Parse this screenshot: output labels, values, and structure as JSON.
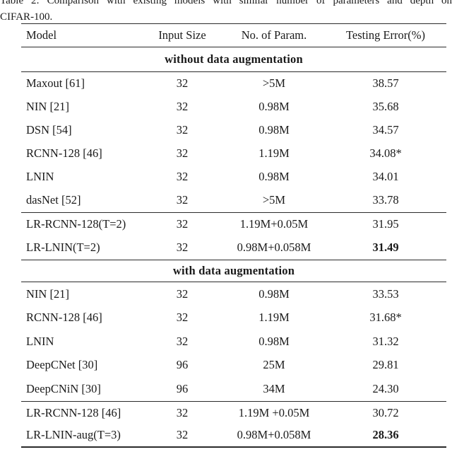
{
  "colors": {
    "background": "#ffffff",
    "text": "#1a1a1a",
    "rule": "#2b2b2b"
  },
  "caption": {
    "line1": "Table 2: Comparison with existing models with similar number of parameters and depth on",
    "line2": "CIFAR-100."
  },
  "table": {
    "headers": {
      "model": "Model",
      "input_size": "Input Size",
      "params": "No. of Param.",
      "error": "Testing Error(%)"
    },
    "sections": [
      {
        "title": "without data augmentation",
        "rows": [
          {
            "model": "Maxout [61]",
            "input_size": "32",
            "params": ">5M",
            "error": "38.57"
          },
          {
            "model": "NIN [21]",
            "input_size": "32",
            "params": "0.98M",
            "error": "35.68"
          },
          {
            "model": "DSN [54]",
            "input_size": "32",
            "params": "0.98M",
            "error": "34.57"
          },
          {
            "model": "RCNN-128 [46]",
            "input_size": "32",
            "params": "1.19M",
            "error": "34.08*"
          },
          {
            "model": "LNIN",
            "input_size": "32",
            "params": "0.98M",
            "error": "34.01"
          },
          {
            "model": "dasNet [52]",
            "input_size": "32",
            "params": ">5M",
            "error": "33.78"
          }
        ],
        "lr_rows": [
          {
            "model": "LR-RCNN-128(T=2)",
            "input_size": "32",
            "params": "1.19M+0.05M",
            "error": "31.95",
            "error_bold": false
          },
          {
            "model": "LR-LNIN(T=2)",
            "input_size": "32",
            "params": "0.98M+0.058M",
            "error": "31.49",
            "error_bold": true
          }
        ]
      },
      {
        "title": "with data augmentation",
        "rows": [
          {
            "model": "NIN [21]",
            "input_size": "32",
            "params": "0.98M",
            "error": "33.53"
          },
          {
            "model": "RCNN-128 [46]",
            "input_size": "32",
            "params": "1.19M",
            "error": "31.68*"
          },
          {
            "model": "LNIN",
            "input_size": "32",
            "params": "0.98M",
            "error": "31.32"
          },
          {
            "model": "DeepCNet [30]",
            "input_size": "96",
            "params": "25M",
            "error": "29.81"
          },
          {
            "model": "DeepCNiN [30]",
            "input_size": "96",
            "params": "34M",
            "error": "24.30"
          }
        ],
        "lr_rows": [
          {
            "model": "LR-RCNN-128 [46]",
            "input_size": "32",
            "params": "1.19M +0.05M",
            "error": "30.72",
            "error_bold": false
          },
          {
            "model": "LR-LNIN-aug(T=3)",
            "input_size": "32",
            "params": "0.98M+0.058M",
            "error": "28.36",
            "error_bold": true
          }
        ]
      }
    ]
  }
}
